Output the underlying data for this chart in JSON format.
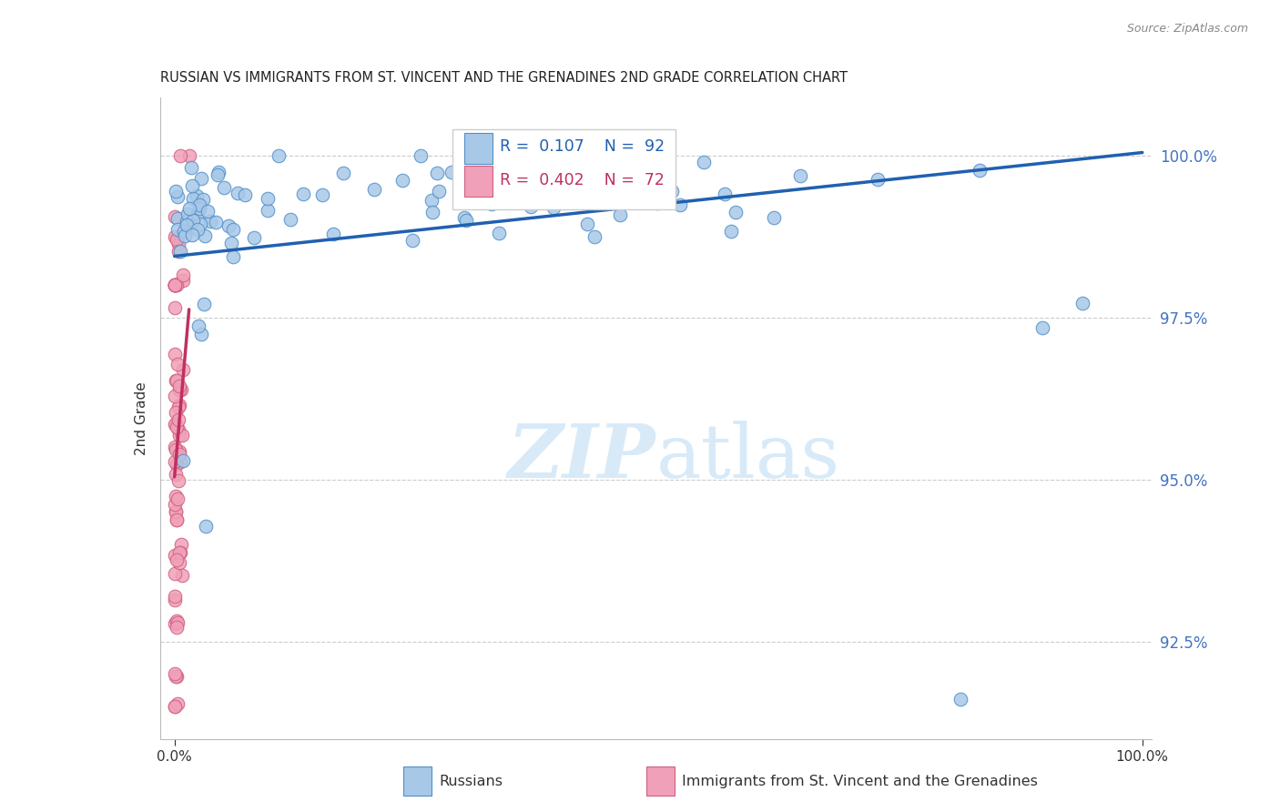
{
  "title": "RUSSIAN VS IMMIGRANTS FROM ST. VINCENT AND THE GRENADINES 2ND GRADE CORRELATION CHART",
  "source": "Source: ZipAtlas.com",
  "ylabel": "2nd Grade",
  "y_tick_values": [
    92.5,
    95.0,
    97.5,
    100.0
  ],
  "y_tick_labels": [
    "92.5%",
    "95.0%",
    "97.5%",
    "100.0%"
  ],
  "xlim": [
    -1.5,
    101
  ],
  "ylim": [
    91.0,
    100.9
  ],
  "legend_r_blue": "R =  0.107",
  "legend_n_blue": "N =  92",
  "legend_r_pink": "R =  0.402",
  "legend_n_pink": "N =  72",
  "legend_blue_label": "Russians",
  "legend_pink_label": "Immigrants from St. Vincent and the Grenadines",
  "blue_face_color": "#a8c8e8",
  "blue_edge_color": "#5090c8",
  "pink_face_color": "#f0a0b8",
  "pink_edge_color": "#d06080",
  "trend_blue_color": "#2060b0",
  "trend_pink_color": "#c03060",
  "watermark_color": "#d8eaf8",
  "grid_color": "#cccccc",
  "title_color": "#222222",
  "axis_label_color": "#333333",
  "right_tick_color": "#4472c4",
  "source_color": "#888888"
}
